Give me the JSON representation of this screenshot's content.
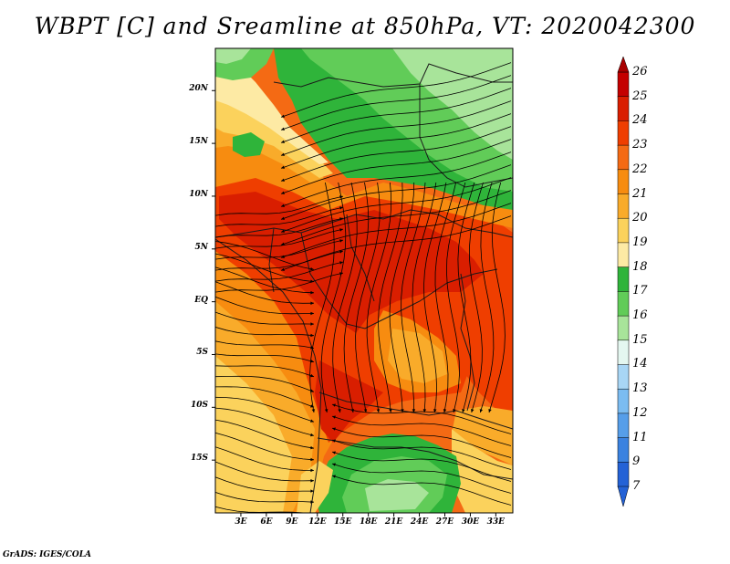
{
  "title": "WBPT [C] and Sreamline at 850hPa, VT: 2020042300",
  "footer": "GrADS: IGES/COLA",
  "map": {
    "lat_labels": [
      "20N",
      "15N",
      "10N",
      "5N",
      "EQ",
      "5S",
      "10S",
      "15S"
    ],
    "lat_values": [
      20,
      15,
      10,
      5,
      0,
      -5,
      -10,
      -15
    ],
    "lon_labels": [
      "3E",
      "6E",
      "9E",
      "12E",
      "15E",
      "18E",
      "21E",
      "24E",
      "27E",
      "30E",
      "33E"
    ],
    "lon_values": [
      3,
      6,
      9,
      12,
      15,
      18,
      21,
      24,
      27,
      30,
      33
    ],
    "extent": {
      "lon_min": 0,
      "lon_max": 35,
      "lat_min": -20,
      "lat_max": 24
    }
  },
  "colorbar": {
    "labels": [
      "26",
      "25",
      "24",
      "23",
      "22",
      "21",
      "20",
      "19",
      "18",
      "17",
      "16",
      "15",
      "14",
      "13",
      "12",
      "11",
      "9",
      "7"
    ],
    "colors": [
      "#c40000",
      "#d91e00",
      "#ef3e00",
      "#f46a14",
      "#f78c10",
      "#f9ab2a",
      "#fbd25c",
      "#fdeaa4",
      "#2fb43a",
      "#61cc58",
      "#a8e49a",
      "#e4f7f0",
      "#a8d6f5",
      "#7bbcf1",
      "#569ee9",
      "#3b82e0",
      "#2462d6"
    ],
    "top_arrow_color": "#a80000",
    "bottom_arrow_color": "#2462d6"
  }
}
